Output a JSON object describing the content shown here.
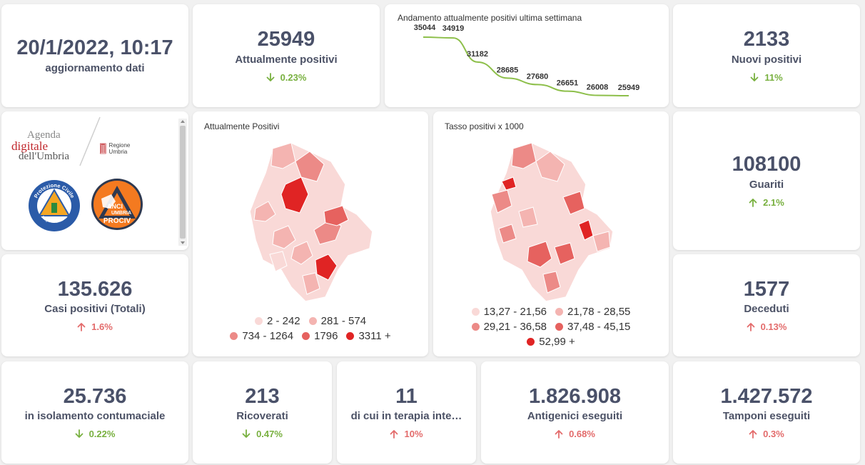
{
  "update": {
    "datetime": "20/1/2022, 10:17",
    "label": "aggiornamento dati"
  },
  "positivi": {
    "value": "25949",
    "label": "Attualmente positivi",
    "change": "0.23%",
    "direction": "down"
  },
  "trend": {
    "title": "Andamento attualmente positivi ultima settimana",
    "values": [
      "35044",
      "34919",
      "31182",
      "28685",
      "27680",
      "26651",
      "26008",
      "25949"
    ]
  },
  "nuovi": {
    "value": "2133",
    "label": "Nuovi positivi",
    "change": "11%",
    "direction": "down"
  },
  "logos": {
    "agenda_l1": "Agenda",
    "agenda_l2": "digitale",
    "agenda_l3": "dell'Umbria",
    "regione": "Regione Umbria",
    "protezione_top": "Protezione Civile",
    "protezione_bottom": "Regione Umbria",
    "anci_l1": "ANCI",
    "anci_l2": "UMBRIA",
    "anci_l3": "PROCIV"
  },
  "map1": {
    "title": "Attualmente Positivi",
    "legend": [
      {
        "label": "2 - 242",
        "color": "#f9d9d7"
      },
      {
        "label": "281 - 574",
        "color": "#f4b4b1"
      },
      {
        "label": "734 - 1264",
        "color": "#ec8a87"
      },
      {
        "label": "1796",
        "color": "#e6625f"
      },
      {
        "label": "3311 +",
        "color": "#e02424"
      }
    ]
  },
  "map2": {
    "title": "Tasso positivi x 1000",
    "legend": [
      {
        "label": "13,27 - 21,56",
        "color": "#f9d9d7"
      },
      {
        "label": "21,78 - 28,55",
        "color": "#f4b4b1"
      },
      {
        "label": "29,21 - 36,58",
        "color": "#ec8a87"
      },
      {
        "label": "37,48 - 45,15",
        "color": "#e6625f"
      },
      {
        "label": "52,99 +",
        "color": "#e02424"
      }
    ]
  },
  "guariti": {
    "value": "108100",
    "label": "Guariti",
    "change": "2.1%",
    "direction": "up"
  },
  "totali": {
    "value": "135.626",
    "label": "Casi positivi (Totali)",
    "change": "1.6%",
    "direction": "up"
  },
  "deceduti": {
    "value": "1577",
    "label": "Deceduti",
    "change": "0.13%",
    "direction": "up"
  },
  "isolamento": {
    "value": "25.736",
    "label": "in isolamento contumaciale",
    "change": "0.22%",
    "direction": "down"
  },
  "ricoverati": {
    "value": "213",
    "label": "Ricoverati",
    "change": "0.47%",
    "direction": "down"
  },
  "terapia": {
    "value": "11",
    "label": "di cui in terapia inte…",
    "change": "10%",
    "direction": "up"
  },
  "antigenici": {
    "value": "1.826.908",
    "label": "Antigenici eseguiti",
    "change": "0.68%",
    "direction": "up"
  },
  "tamponi": {
    "value": "1.427.572",
    "label": "Tamponi eseguiti",
    "change": "0.3%",
    "direction": "up"
  },
  "colors": {
    "down": "#78b03f",
    "up": "#e36b6b",
    "value": "#4a5169",
    "line": "#8dbf4a"
  }
}
